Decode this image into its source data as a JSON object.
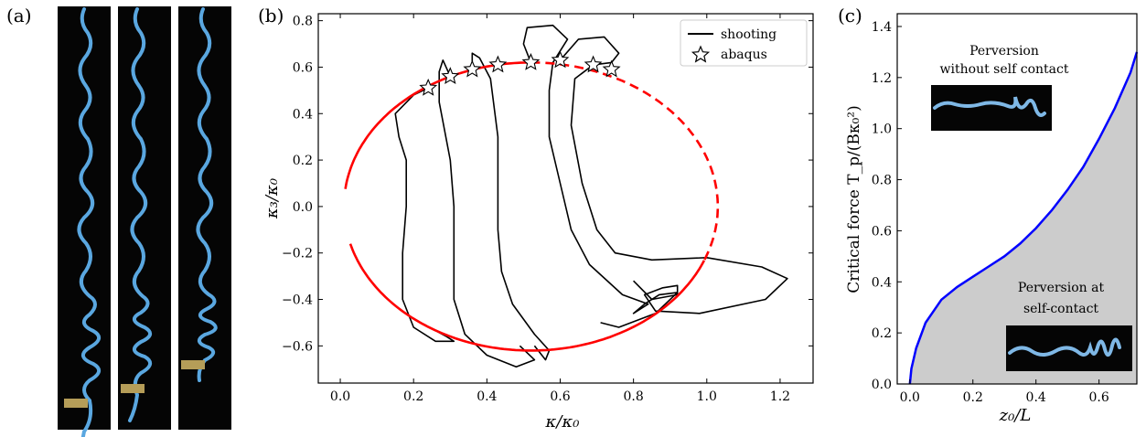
{
  "panels": {
    "a": {
      "label": "(a)"
    },
    "b": {
      "label": "(b)"
    },
    "c": {
      "label": "(c)"
    }
  },
  "chart_data": [
    {
      "type": "line",
      "panel": "b",
      "xlabel": "κ/κ₀",
      "ylabel": "κ₃/κ₀",
      "xlim": [
        -0.06,
        1.29
      ],
      "ylim": [
        -0.76,
        0.83
      ],
      "xticks": [
        "0.0",
        "0.2",
        "0.4",
        "0.6",
        "0.8",
        "1.0",
        "1.2"
      ],
      "yticks": [
        "−0.6",
        "−0.4",
        "−0.2",
        "0.0",
        "0.2",
        "0.4",
        "0.6",
        "0.8"
      ],
      "legend": {
        "position": "top-right",
        "entries": [
          "shooting",
          "abaqus"
        ]
      },
      "red_curve": {
        "center": [
          0.52,
          0.0
        ],
        "radius_x": 0.51,
        "radius_y": 0.62,
        "solid_part": "left",
        "dashed_part": "upper-right"
      },
      "abaqus_points": [
        [
          0.24,
          0.51
        ],
        [
          0.3,
          0.56
        ],
        [
          0.36,
          0.59
        ],
        [
          0.43,
          0.61
        ],
        [
          0.52,
          0.62
        ],
        [
          0.6,
          0.63
        ],
        [
          0.69,
          0.61
        ],
        [
          0.74,
          0.59
        ]
      ],
      "shooting_branches": 5
    },
    {
      "type": "area",
      "panel": "c",
      "xlabel": "z₀/L",
      "ylabel": "Critical force T_p/(Bκ₀²)",
      "xlim": [
        -0.04,
        0.72
      ],
      "ylim": [
        0.0,
        1.45
      ],
      "xticks": [
        "0.0",
        "0.2",
        "0.4",
        "0.6"
      ],
      "yticks": [
        "0.0",
        "0.2",
        "0.4",
        "0.6",
        "0.8",
        "1.0",
        "1.2",
        "1.4"
      ],
      "x": [
        0.0,
        0.005,
        0.02,
        0.05,
        0.1,
        0.15,
        0.2,
        0.25,
        0.3,
        0.35,
        0.4,
        0.45,
        0.5,
        0.55,
        0.6,
        0.65,
        0.7,
        0.72
      ],
      "y": [
        0.0,
        0.06,
        0.14,
        0.24,
        0.33,
        0.38,
        0.42,
        0.46,
        0.5,
        0.55,
        0.61,
        0.68,
        0.76,
        0.85,
        0.96,
        1.08,
        1.22,
        1.3
      ],
      "annotations": {
        "upper": [
          "Perversion",
          "without self contact"
        ],
        "lower": [
          "Perversion at",
          "self-contact"
        ]
      }
    }
  ]
}
